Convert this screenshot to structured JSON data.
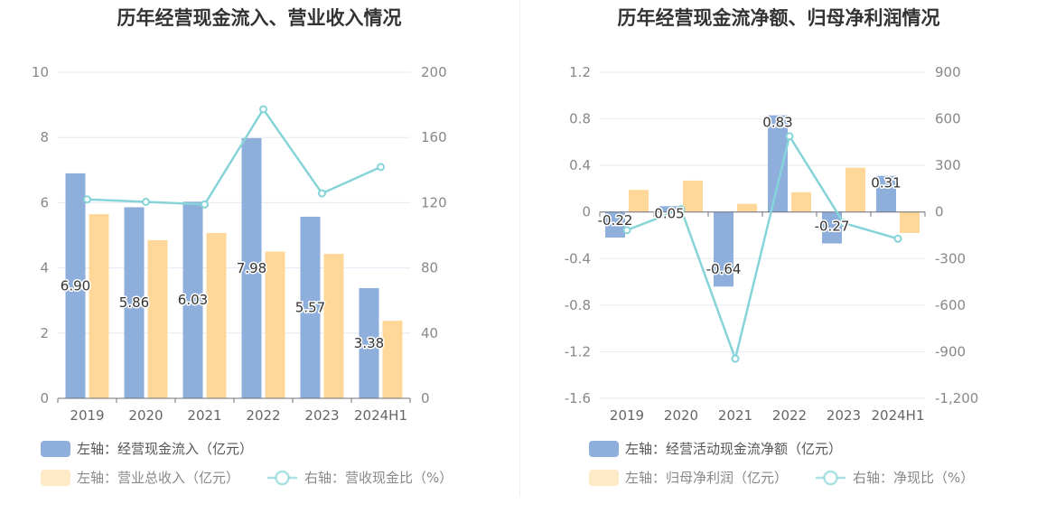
{
  "chart_data": [
    {
      "type": "bar",
      "title": "历年经营现金流入、营业收入情况",
      "categories": [
        "2019",
        "2020",
        "2021",
        "2022",
        "2023",
        "2024H1"
      ],
      "left_axis": {
        "min": 0,
        "max": 10,
        "ticks": [
          "0",
          "2",
          "4",
          "6",
          "8",
          "10"
        ]
      },
      "right_axis": {
        "min": 0,
        "max": 200,
        "ticks": [
          "0",
          "40",
          "80",
          "120",
          "160",
          "200"
        ]
      },
      "series": [
        {
          "name": "左轴：经营现金流入（亿元）",
          "kind": "bar",
          "axis": "left",
          "color": "#8eaedc",
          "values": [
            6.9,
            5.86,
            6.03,
            7.98,
            5.57,
            3.38
          ],
          "labels": [
            "6.90",
            "5.86",
            "6.03",
            "7.98",
            "5.57",
            "3.38"
          ]
        },
        {
          "name": "左轴：营业总收入（亿元）",
          "kind": "bar",
          "axis": "left",
          "color": "#ffd899",
          "values": [
            5.65,
            4.85,
            5.07,
            4.5,
            4.43,
            2.38
          ]
        },
        {
          "name": "右轴：营收现金比（%）",
          "kind": "line",
          "axis": "right",
          "color": "#86d4d8",
          "values": [
            122,
            120.5,
            118.9,
            177.3,
            125.7,
            141.9
          ]
        }
      ],
      "legend_position": "bottom-left",
      "grid": true
    },
    {
      "type": "bar",
      "title": "历年经营现金流净额、归母净利润情况",
      "categories": [
        "2019",
        "2020",
        "2021",
        "2022",
        "2023",
        "2024H1"
      ],
      "left_axis": {
        "min": -1.6,
        "max": 1.2,
        "ticks": [
          "-1.6",
          "-1.2",
          "-0.8",
          "-0.4",
          "0",
          "0.4",
          "0.8",
          "1.2"
        ]
      },
      "right_axis": {
        "min": -1200,
        "max": 900,
        "ticks": [
          "-1,200",
          "-900",
          "-600",
          "-300",
          "0",
          "300",
          "600",
          "900"
        ]
      },
      "series": [
        {
          "name": "左轴：经营活动现金流净额（亿元）",
          "kind": "bar",
          "axis": "left",
          "color": "#8eaedc",
          "values": [
            -0.22,
            0.05,
            -0.64,
            0.83,
            -0.27,
            0.31
          ],
          "labels": [
            "-0.22",
            "0.05",
            "-0.64",
            "0.83",
            "-0.27",
            "0.31"
          ]
        },
        {
          "name": "左轴：归母净利润（亿元）",
          "kind": "bar",
          "axis": "left",
          "color": "#ffd899",
          "values": [
            0.19,
            0.27,
            0.07,
            0.17,
            0.38,
            -0.18
          ]
        },
        {
          "name": "右轴：净现比（%）",
          "kind": "line",
          "axis": "right",
          "color": "#86d4d8",
          "values": [
            -117,
            18,
            -945,
            488,
            -71,
            -172
          ]
        }
      ],
      "legend_position": "bottom-left",
      "grid": true
    }
  ]
}
